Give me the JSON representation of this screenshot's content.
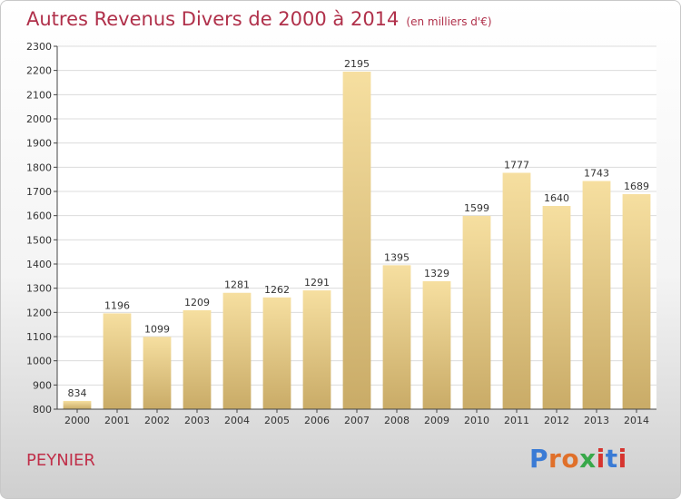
{
  "title": {
    "main": "Autres Revenus Divers de 2000 à 2014",
    "unit": "(en milliers d'€)"
  },
  "commune": "PEYNIER",
  "logo": {
    "text": "Proxiti"
  },
  "colors": {
    "title": "#b0304a",
    "bar_light": "#f6dfa0",
    "bar_dark": "#c9ab67",
    "plot_bg": "#ffffff",
    "logo_colors": [
      "#3a7bd5",
      "#e0702a",
      "#38a84a",
      "#d6342f"
    ]
  },
  "chart_data": {
    "type": "bar",
    "categories": [
      "2000",
      "2001",
      "2002",
      "2003",
      "2004",
      "2005",
      "2006",
      "2007",
      "2008",
      "2009",
      "2010",
      "2011",
      "2012",
      "2013",
      "2014"
    ],
    "values": [
      834,
      1196,
      1099,
      1209,
      1281,
      1262,
      1291,
      2195,
      1395,
      1329,
      1599,
      1777,
      1640,
      1743,
      1689
    ],
    "data_labels": [
      "834",
      "1196",
      "1099",
      "1209",
      "1281",
      "1262",
      "1291",
      "2195",
      "1395",
      "1329",
      "1599",
      "1777",
      "1640",
      "1743",
      "1689"
    ],
    "ylim": [
      800,
      2300
    ],
    "yticks": [
      800,
      900,
      1000,
      1100,
      1200,
      1300,
      1400,
      1500,
      1600,
      1700,
      1800,
      1900,
      2000,
      2100,
      2200,
      2300
    ],
    "grid": true,
    "legend": "none"
  }
}
